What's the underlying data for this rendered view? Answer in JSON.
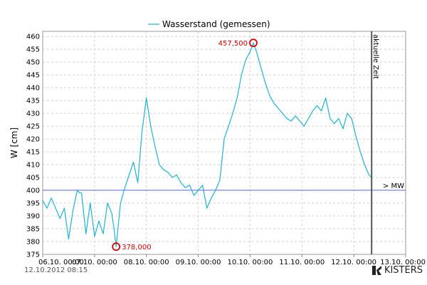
{
  "chart_data": {
    "type": "line",
    "legend": [
      "Wasserstand (gemessen)"
    ],
    "legend_position": "top-center",
    "ylabel": "W [cm]",
    "xlabel": "",
    "ylim": [
      375,
      462
    ],
    "yticks": [
      375,
      380,
      385,
      390,
      395,
      400,
      405,
      410,
      415,
      420,
      425,
      430,
      435,
      440,
      445,
      450,
      455,
      460
    ],
    "x_range": [
      "2012-10-06 00:00",
      "2012-10-13 00:00"
    ],
    "xticks": [
      "06.10. 00:00",
      "07.10. 00:00",
      "08.10. 00:00",
      "09.10. 00:00",
      "10.10. 00:00",
      "11.10. 00:00",
      "12.10. 00:00",
      "13.10. 00:00"
    ],
    "grid": true,
    "reference_lines": [
      {
        "label": "> MW",
        "value": 400
      }
    ],
    "current_time": {
      "label": "aktuelle Zeit",
      "x": "2012-10-12 08:15"
    },
    "extremes": [
      {
        "label": "378,000",
        "x": "2012-10-07 10:00",
        "y": 378.0,
        "kind": "min"
      },
      {
        "label": "457,500",
        "x": "2012-10-10 01:30",
        "y": 457.5,
        "kind": "max"
      }
    ],
    "series": [
      {
        "name": "Wasserstand (gemessen)",
        "x": [
          "2012-10-06 00:00",
          "2012-10-06 02:00",
          "2012-10-06 04:00",
          "2012-10-06 06:00",
          "2012-10-06 08:00",
          "2012-10-06 10:00",
          "2012-10-06 12:00",
          "2012-10-06 14:00",
          "2012-10-06 16:00",
          "2012-10-06 17:00",
          "2012-10-06 18:00",
          "2012-10-06 20:00",
          "2012-10-06 22:00",
          "2012-10-07 00:00",
          "2012-10-07 02:00",
          "2012-10-07 04:00",
          "2012-10-07 06:00",
          "2012-10-07 08:00",
          "2012-10-07 09:00",
          "2012-10-07 10:00",
          "2012-10-07 12:00",
          "2012-10-07 14:00",
          "2012-10-07 16:00",
          "2012-10-07 18:00",
          "2012-10-07 20:00",
          "2012-10-07 22:00",
          "2012-10-08 00:00",
          "2012-10-08 02:00",
          "2012-10-08 04:00",
          "2012-10-08 06:00",
          "2012-10-08 08:00",
          "2012-10-08 10:00",
          "2012-10-08 12:00",
          "2012-10-08 14:00",
          "2012-10-08 16:00",
          "2012-10-08 18:00",
          "2012-10-08 20:00",
          "2012-10-08 22:00",
          "2012-10-09 00:00",
          "2012-10-09 02:00",
          "2012-10-09 04:00",
          "2012-10-09 06:00",
          "2012-10-09 08:00",
          "2012-10-09 10:00",
          "2012-10-09 12:00",
          "2012-10-09 14:00",
          "2012-10-09 16:00",
          "2012-10-09 18:00",
          "2012-10-09 20:00",
          "2012-10-09 22:00",
          "2012-10-10 00:00",
          "2012-10-10 01:30",
          "2012-10-10 03:00",
          "2012-10-10 05:00",
          "2012-10-10 07:00",
          "2012-10-10 09:00",
          "2012-10-10 11:00",
          "2012-10-10 13:00",
          "2012-10-10 15:00",
          "2012-10-10 17:00",
          "2012-10-10 19:00",
          "2012-10-10 21:00",
          "2012-10-10 23:00",
          "2012-10-11 01:00",
          "2012-10-11 03:00",
          "2012-10-11 05:00",
          "2012-10-11 07:00",
          "2012-10-11 09:00",
          "2012-10-11 11:00",
          "2012-10-11 13:00",
          "2012-10-11 15:00",
          "2012-10-11 17:00",
          "2012-10-11 19:00",
          "2012-10-11 21:00",
          "2012-10-11 23:00",
          "2012-10-12 01:00",
          "2012-10-12 03:00",
          "2012-10-12 05:00",
          "2012-10-12 07:00",
          "2012-10-12 08:15"
        ],
        "y": [
          396,
          393,
          397,
          393,
          389,
          393,
          381,
          392,
          400,
          399,
          399,
          383,
          395,
          382,
          388,
          383,
          395,
          391,
          385,
          378,
          395,
          401,
          406,
          411,
          403,
          423,
          436,
          425,
          417,
          410,
          408,
          407,
          405,
          406,
          403,
          401,
          402,
          398,
          400,
          402,
          393,
          397,
          400,
          404,
          420,
          425,
          430,
          436,
          445,
          451,
          454,
          457.5,
          454,
          448,
          442,
          437,
          434,
          432,
          430,
          428,
          427,
          429,
          427,
          425,
          428,
          431,
          433,
          431,
          436,
          428,
          426,
          428,
          424,
          430,
          428,
          421,
          415,
          410,
          406,
          405
        ]
      }
    ]
  },
  "colors": {
    "series": "#1fb3d1",
    "reference_line": "#5566cc",
    "current_time_line": "#555555",
    "extreme": "#dd0000",
    "grid": "#d2d2d2"
  },
  "footer": {
    "timestamp": "12.10.2012  08:15",
    "logo_text": "KISTERS"
  }
}
